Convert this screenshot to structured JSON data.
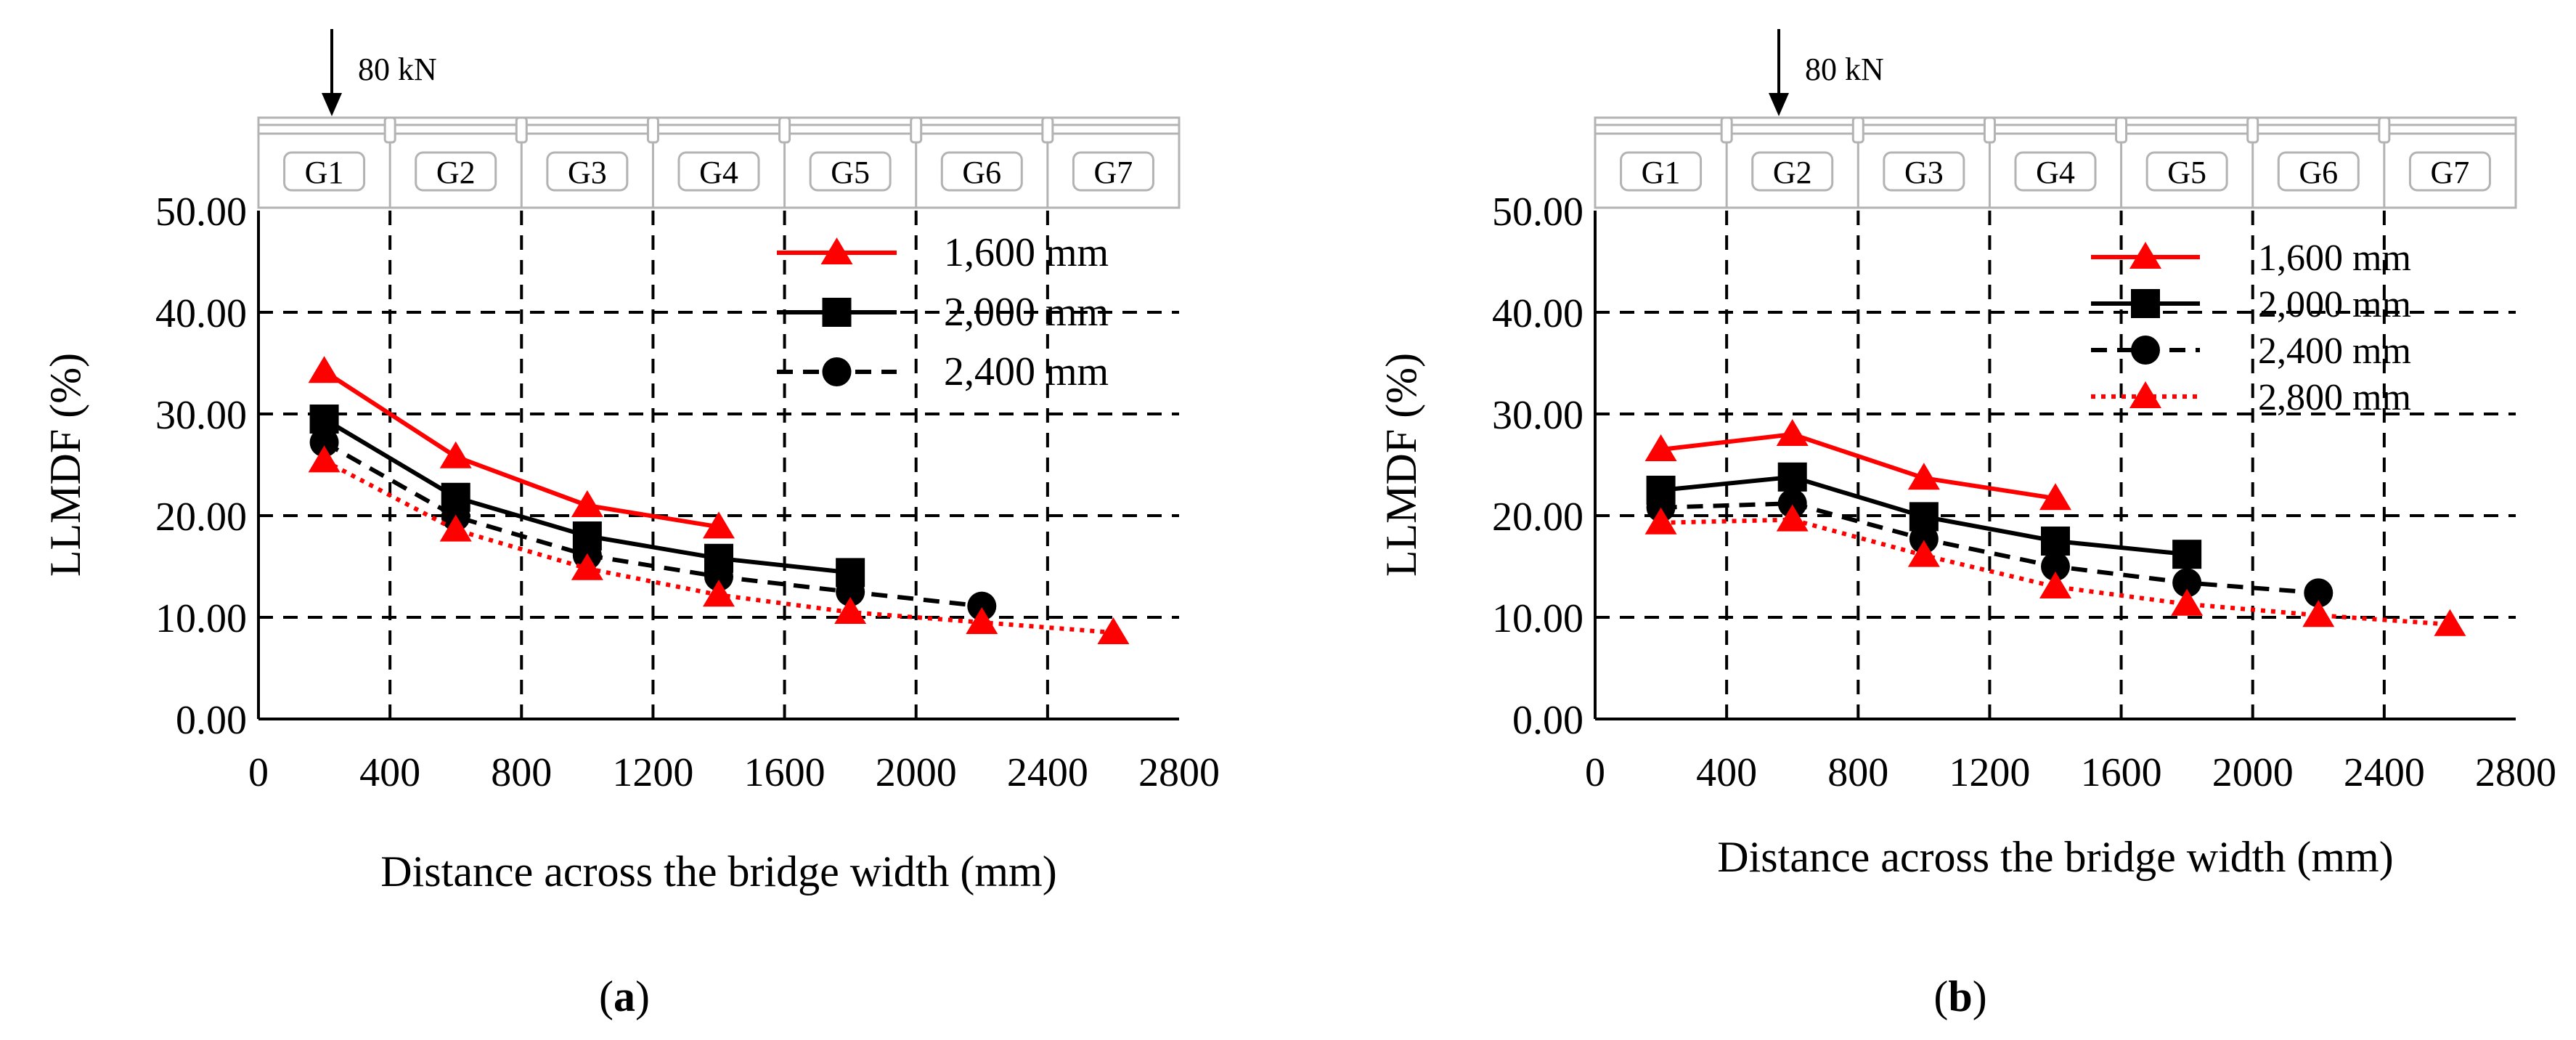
{
  "colors": {
    "red": "#ff0000",
    "black": "#000000",
    "deck": "#b3b3b3",
    "grid": "#000000"
  },
  "chart_data": [
    {
      "type": "line",
      "caption": "(a)",
      "caption_letter": "a",
      "load": {
        "label": "80 kN",
        "girder": "G1"
      },
      "girders": [
        "G1",
        "G2",
        "G3",
        "G4",
        "G5",
        "G6",
        "G7"
      ],
      "xlabel": "Distance across the bridge width (mm)",
      "ylabel": "LLMDF (%)",
      "xlim": [
        0,
        2800
      ],
      "ylim": [
        0,
        50
      ],
      "xticks": [
        "0",
        "400",
        "800",
        "1200",
        "1600",
        "2000",
        "2400",
        "2800"
      ],
      "yticks": [
        "0.00",
        "10.00",
        "20.00",
        "30.00",
        "40.00",
        "50.00"
      ],
      "grid": true,
      "legend_position": "top-right",
      "series": [
        {
          "name": "1,600 mm",
          "color": "#ff0000",
          "line": "solid",
          "marker": "triangle",
          "legend": true,
          "x": [
            200,
            600,
            1000,
            1400
          ],
          "y": [
            34.2,
            25.8,
            21.0,
            18.9
          ]
        },
        {
          "name": "2,000 mm",
          "color": "#000000",
          "line": "solid",
          "marker": "square",
          "legend": true,
          "x": [
            200,
            600,
            1000,
            1400,
            1800
          ],
          "y": [
            29.5,
            21.8,
            18.0,
            15.8,
            14.4
          ]
        },
        {
          "name": "2,400 mm",
          "color": "#000000",
          "line": "dashed",
          "marker": "circle",
          "legend": true,
          "x": [
            200,
            600,
            1000,
            1400,
            1800,
            2200
          ],
          "y": [
            27.2,
            19.9,
            16.1,
            14.0,
            12.5,
            11.1
          ]
        },
        {
          "name": "",
          "color": "#ff0000",
          "line": "dotted",
          "marker": "triangle",
          "legend": false,
          "x": [
            200,
            600,
            1000,
            1400,
            1800,
            2200,
            2600
          ],
          "y": [
            25.4,
            18.6,
            14.8,
            12.2,
            10.5,
            9.5,
            8.5
          ]
        }
      ]
    },
    {
      "type": "line",
      "caption": "(b)",
      "caption_letter": "b",
      "load": {
        "label": "80 kN",
        "girder": "G2"
      },
      "girders": [
        "G1",
        "G2",
        "G3",
        "G4",
        "G5",
        "G6",
        "G7"
      ],
      "xlabel": "Distance across the bridge width (mm)",
      "ylabel": "LLMDF (%)",
      "xlim": [
        0,
        2800
      ],
      "ylim": [
        0,
        50
      ],
      "xticks": [
        "0",
        "400",
        "800",
        "1200",
        "1600",
        "2000",
        "2400",
        "2800"
      ],
      "yticks": [
        "0.00",
        "10.00",
        "20.00",
        "30.00",
        "40.00",
        "50.00"
      ],
      "grid": true,
      "legend_position": "top-right",
      "series": [
        {
          "name": "1,600 mm",
          "color": "#ff0000",
          "line": "solid",
          "marker": "triangle",
          "legend": true,
          "x": [
            200,
            600,
            1000,
            1400
          ],
          "y": [
            26.5,
            28.0,
            23.7,
            21.7
          ]
        },
        {
          "name": "2,000 mm",
          "color": "#000000",
          "line": "solid",
          "marker": "square",
          "legend": true,
          "x": [
            200,
            600,
            1000,
            1400,
            1800
          ],
          "y": [
            22.5,
            23.8,
            19.9,
            17.5,
            16.2
          ]
        },
        {
          "name": "2,400 mm",
          "color": "#000000",
          "line": "dashed",
          "marker": "circle",
          "legend": true,
          "x": [
            200,
            600,
            1000,
            1400,
            1800,
            2200
          ],
          "y": [
            20.8,
            21.2,
            17.7,
            15.0,
            13.4,
            12.4
          ]
        },
        {
          "name": "2,800 mm",
          "color": "#ff0000",
          "line": "dotted",
          "marker": "triangle",
          "legend": true,
          "x": [
            200,
            600,
            1000,
            1400,
            1800,
            2200,
            2600
          ],
          "y": [
            19.3,
            19.6,
            16.1,
            13.0,
            11.3,
            10.2,
            9.3
          ]
        }
      ]
    }
  ]
}
